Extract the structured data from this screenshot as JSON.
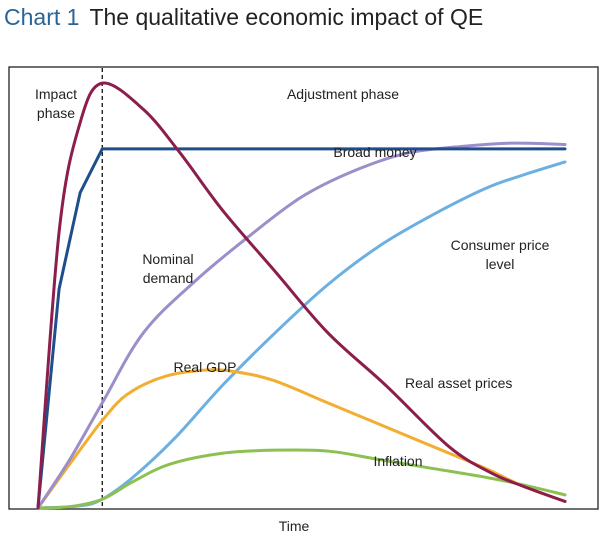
{
  "header": {
    "chart_number": "Chart 1",
    "title": "The qualitative economic impact of QE"
  },
  "chart_data": {
    "type": "line",
    "title": "The qualitative economic impact of QE",
    "xlabel": "Time",
    "ylabel": "",
    "xlim": [
      0,
      100
    ],
    "ylim": [
      0,
      100
    ],
    "grid": false,
    "legend": "none",
    "phases": {
      "boundary_x": 12.2,
      "impact_label": [
        "Impact",
        "phase"
      ],
      "adjustment_label": "Adjustment phase"
    },
    "series": [
      {
        "name": "Broad money",
        "label_lines": [
          "Broad money"
        ],
        "color": "#1f4e8c",
        "x": [
          0,
          4,
          8,
          12.2,
          20,
          40,
          60,
          80,
          100
        ],
        "y": [
          0,
          50,
          72,
          82,
          82,
          82,
          82,
          82,
          82
        ]
      },
      {
        "name": "Real asset prices",
        "label_lines": [
          "Real asset prices"
        ],
        "color": "#8b1e4c",
        "x": [
          0,
          4,
          8,
          12.2,
          20,
          27,
          35,
          45,
          55,
          66,
          78,
          86,
          92,
          100
        ],
        "y": [
          0,
          63,
          88,
          97,
          91,
          81,
          68,
          54,
          40,
          28,
          14,
          8,
          5,
          1.5
        ]
      },
      {
        "name": "Nominal demand",
        "label_lines": [
          "Nominal",
          "demand"
        ],
        "color": "#9c8dcb",
        "x": [
          0,
          6,
          12.2,
          20,
          30,
          40,
          50,
          60,
          70,
          80,
          90,
          100
        ],
        "y": [
          0,
          11,
          24,
          40,
          52,
          62,
          71,
          77,
          81,
          82.5,
          83.3,
          83
        ]
      },
      {
        "name": "Consumer price level",
        "label_lines": [
          "Consumer price",
          "level"
        ],
        "color": "#6cb0e2",
        "x": [
          0,
          8,
          12.2,
          18,
          26,
          35,
          45,
          55,
          65,
          75,
          85,
          92,
          100
        ],
        "y": [
          0,
          0.5,
          2,
          7,
          16,
          28,
          40,
          51,
          60,
          67,
          73,
          76,
          79
        ]
      },
      {
        "name": "Real GDP",
        "label_lines": [
          "Real GDP"
        ],
        "color": "#f2ae30",
        "x": [
          0,
          6,
          12.2,
          17,
          24,
          32,
          38,
          45,
          55,
          65,
          75,
          85,
          92,
          100
        ],
        "y": [
          0,
          10,
          20,
          26,
          30,
          31.5,
          31,
          29,
          24,
          19,
          14,
          9,
          5,
          1.5
        ]
      },
      {
        "name": "Inflation",
        "label_lines": [
          "Inflation"
        ],
        "color": "#8cc152",
        "x": [
          0,
          6,
          12.2,
          18,
          25,
          35,
          45,
          55,
          65,
          75,
          85,
          92,
          100
        ],
        "y": [
          0,
          0.3,
          2,
          6,
          10,
          12.5,
          13.2,
          13,
          11,
          9,
          7,
          5.3,
          3
        ]
      }
    ]
  }
}
